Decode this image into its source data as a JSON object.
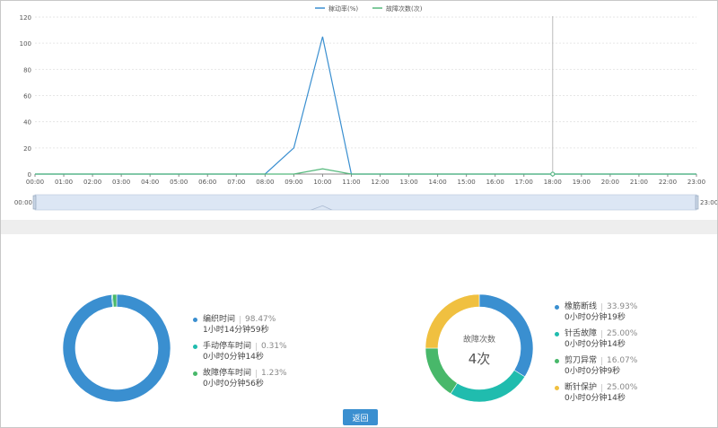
{
  "line_chart": {
    "legend": [
      {
        "name": "稼动率(%)",
        "color": "#3a8fd0"
      },
      {
        "name": "故障次数(次)",
        "color": "#55b97c"
      }
    ],
    "hover_time": "18:00",
    "zoom": {
      "start_label": "00:00",
      "end_label": "23:00"
    }
  },
  "chart_data": [
    {
      "type": "line",
      "x": [
        "00:00",
        "01:00",
        "02:00",
        "03:00",
        "04:00",
        "05:00",
        "06:00",
        "07:00",
        "08:00",
        "09:00",
        "10:00",
        "11:00",
        "12:00",
        "13:00",
        "14:00",
        "15:00",
        "16:00",
        "17:00",
        "18:00",
        "19:00",
        "20:00",
        "21:00",
        "22:00",
        "23:00"
      ],
      "series": [
        {
          "name": "稼动率(%)",
          "values": [
            0,
            0,
            0,
            0,
            0,
            0,
            0,
            0,
            0,
            20,
            105,
            0,
            0,
            0,
            0,
            0,
            0,
            0,
            0,
            0,
            0,
            0,
            0,
            0
          ]
        },
        {
          "name": "故障次数(次)",
          "values": [
            0,
            0,
            0,
            0,
            0,
            0,
            0,
            0,
            0,
            0,
            4,
            0,
            0,
            0,
            0,
            0,
            0,
            0,
            0,
            0,
            0,
            0,
            0,
            0
          ]
        }
      ],
      "yticks": [
        0,
        20,
        40,
        60,
        80,
        100,
        120
      ],
      "ylim": [
        0,
        120
      ],
      "grid": true,
      "legend_position": "top-center"
    },
    {
      "type": "pie",
      "labels": [
        "编织时间",
        "手动停车时间",
        "故障停车时间"
      ],
      "values": [
        98.47,
        0.31,
        1.23
      ]
    },
    {
      "type": "pie",
      "labels": [
        "橡筋断线",
        "针舌故障",
        "剪刀异常",
        "断针保护"
      ],
      "values": [
        33.93,
        25.0,
        16.07,
        25.0
      ]
    }
  ],
  "time_summary": {
    "items": [
      {
        "label": "编织时间",
        "percent": "98.47%",
        "duration": "1小时14分钟59秒",
        "color": "#3a8fd0"
      },
      {
        "label": "手动停车时间",
        "percent": "0.31%",
        "duration": "0小时0分钟14秒",
        "color": "#20bcae"
      },
      {
        "label": "故障停车时间",
        "percent": "1.23%",
        "duration": "0小时0分钟56秒",
        "color": "#48b86a"
      }
    ]
  },
  "fault_summary": {
    "center_label": "故障次数",
    "center_value": "4次",
    "items": [
      {
        "label": "橡筋断线",
        "percent": "33.93%",
        "duration": "0小时0分钟19秒",
        "color": "#3a8fd0"
      },
      {
        "label": "针舌故障",
        "percent": "25.00%",
        "duration": "0小时0分钟14秒",
        "color": "#20bcae"
      },
      {
        "label": "剪刀异常",
        "percent": "16.07%",
        "duration": "0小时0分钟9秒",
        "color": "#48b86a"
      },
      {
        "label": "断针保护",
        "percent": "25.00%",
        "duration": "0小时0分钟14秒",
        "color": "#f0c040"
      }
    ]
  },
  "footer": {
    "back_label": "返回"
  }
}
